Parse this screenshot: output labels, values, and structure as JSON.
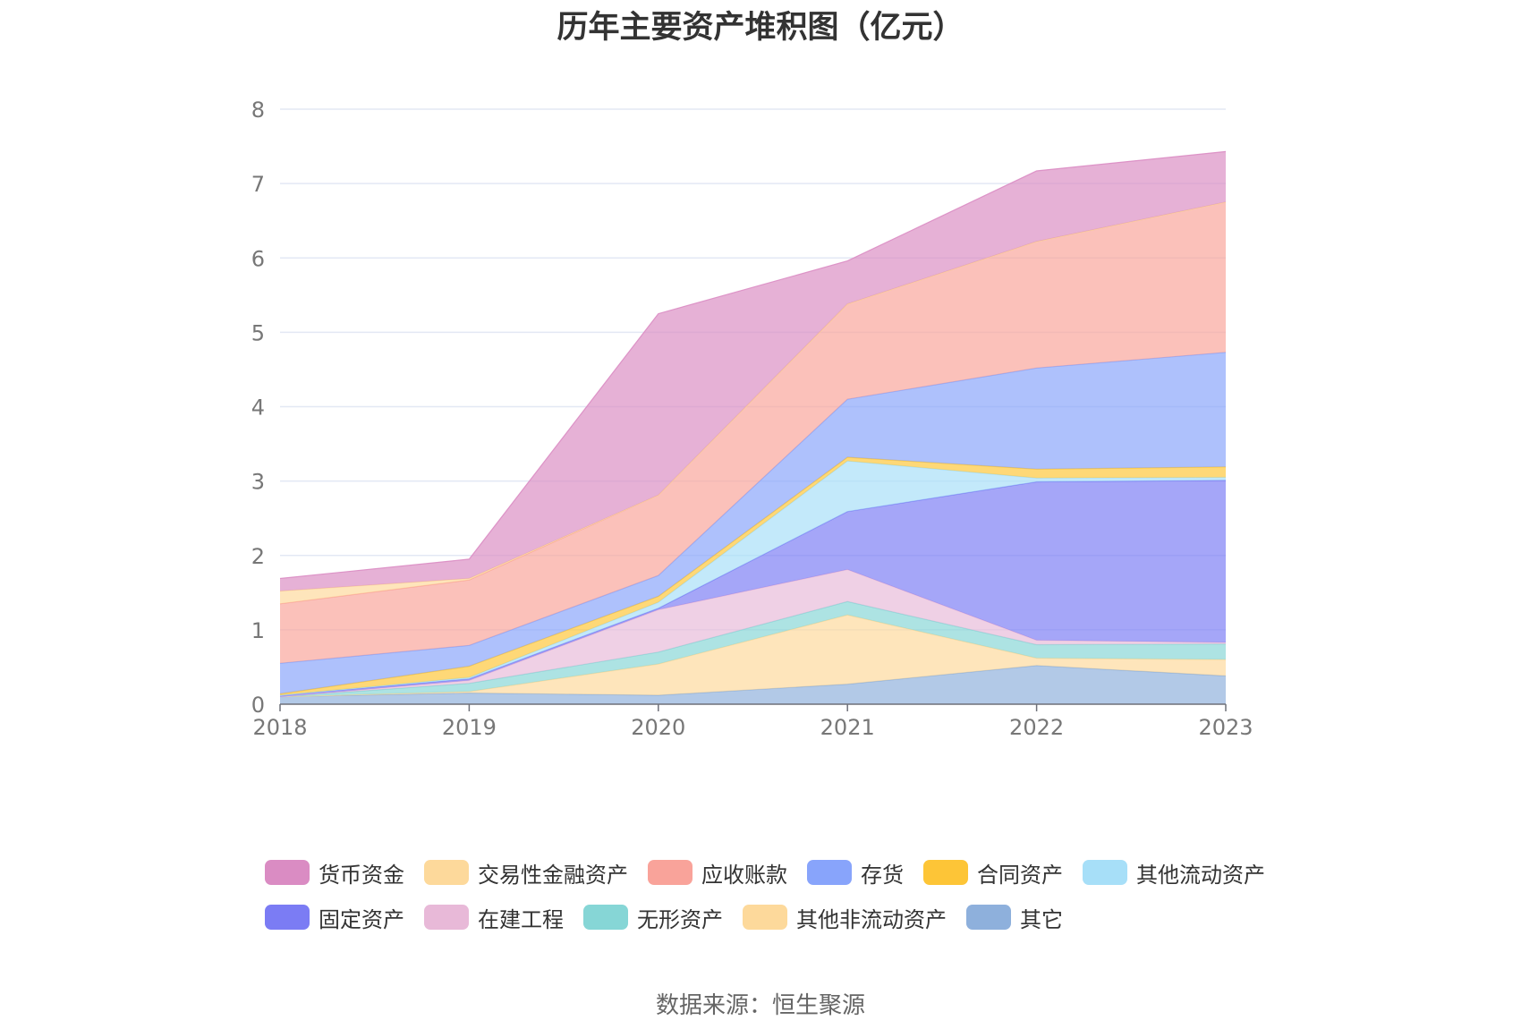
{
  "chart_data": {
    "type": "area",
    "stacked": true,
    "title": "历年主要资产堆积图（亿元）",
    "x": [
      "2018",
      "2019",
      "2020",
      "2021",
      "2022",
      "2023"
    ],
    "y_ticks": [
      "0",
      "1",
      "2",
      "3",
      "4",
      "5",
      "6",
      "7",
      "8"
    ],
    "ylim": [
      0,
      8
    ],
    "grid": true,
    "legend_position": "bottom",
    "series": [
      {
        "name": "其它",
        "color": "#8eb0dc",
        "values": [
          0.1,
          0.15,
          0.12,
          0.27,
          0.52,
          0.38
        ]
      },
      {
        "name": "其他非流动资产",
        "color": "#fdd99b",
        "values": [
          0.0,
          0.02,
          0.42,
          0.93,
          0.1,
          0.22
        ]
      },
      {
        "name": "无形资产",
        "color": "#86d6d6",
        "values": [
          0.0,
          0.11,
          0.16,
          0.18,
          0.18,
          0.21
        ]
      },
      {
        "name": "在建工程",
        "color": "#e8b9d8",
        "values": [
          0.0,
          0.04,
          0.57,
          0.43,
          0.06,
          0.02
        ]
      },
      {
        "name": "固定资产",
        "color": "#7b7cf4",
        "values": [
          0.02,
          0.02,
          0.02,
          0.78,
          2.13,
          2.18
        ]
      },
      {
        "name": "其他流动资产",
        "color": "#a7dff8",
        "values": [
          0.0,
          0.02,
          0.08,
          0.68,
          0.05,
          0.04
        ]
      },
      {
        "name": "合同资产",
        "color": "#fdc537",
        "values": [
          0.02,
          0.15,
          0.08,
          0.05,
          0.12,
          0.14
        ]
      },
      {
        "name": "存货",
        "color": "#88a4fb",
        "values": [
          0.41,
          0.28,
          0.28,
          0.78,
          1.36,
          1.54
        ]
      },
      {
        "name": "应收账款",
        "color": "#f9a39a",
        "values": [
          0.8,
          0.88,
          1.08,
          1.28,
          1.7,
          2.02
        ]
      },
      {
        "name": "交易性金融资产",
        "color": "#fdd99b",
        "values": [
          0.17,
          0.02,
          0.0,
          0.0,
          0.0,
          0.0
        ]
      },
      {
        "name": "货币资金",
        "color": "#da8cc3",
        "values": [
          0.17,
          0.26,
          2.44,
          0.58,
          0.95,
          0.68
        ]
      }
    ]
  },
  "legend_rows": [
    [
      {
        "name": "货币资金",
        "color": "#da8cc3"
      },
      {
        "name": "交易性金融资产",
        "color": "#fdd99b"
      },
      {
        "name": "应收账款",
        "color": "#f9a39a"
      },
      {
        "name": "存货",
        "color": "#88a4fb"
      },
      {
        "name": "合同资产",
        "color": "#fdc537"
      },
      {
        "name": "其他流动资产",
        "color": "#a7dff8"
      }
    ],
    [
      {
        "name": "固定资产",
        "color": "#7b7cf4"
      },
      {
        "name": "在建工程",
        "color": "#e8b9d8"
      },
      {
        "name": "无形资产",
        "color": "#86d6d6"
      },
      {
        "name": "其他非流动资产",
        "color": "#fdd99b"
      },
      {
        "name": "其它",
        "color": "#8eb0dc"
      }
    ]
  ],
  "source_text": "数据来源：恒生聚源"
}
